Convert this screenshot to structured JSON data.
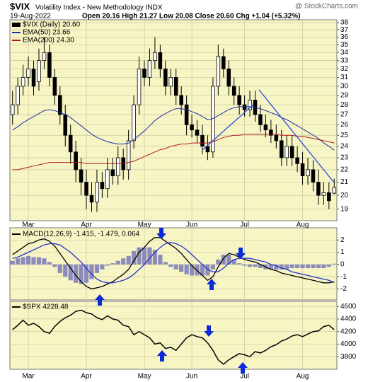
{
  "header": {
    "symbol": "$VIX",
    "subtitle": "Volatility Index - New Methodology INDX",
    "watermark": "@ StockCharts.com",
    "date": "19-Aug-2022",
    "quote": "Open 20.16 High 21.27 Low 20.08 Close 20.60 Chg +1.04 (+5.32%)"
  },
  "chart_data": [
    {
      "type": "candlestick",
      "log_scale": true,
      "grid": true,
      "categories": [
        null,
        null,
        null,
        "Mar",
        null,
        null,
        null,
        null,
        null,
        null,
        null,
        null,
        null,
        null,
        "Apr",
        null,
        null,
        null,
        null,
        null,
        null,
        null,
        null,
        null,
        null,
        "May",
        null,
        null,
        null,
        null,
        null,
        null,
        null,
        null,
        "Jun",
        null,
        null,
        null,
        null,
        null,
        null,
        null,
        null,
        null,
        "Jul",
        null,
        null,
        null,
        null,
        null,
        null,
        null,
        null,
        null,
        null,
        "Aug",
        null,
        null,
        null,
        null,
        null,
        null
      ],
      "ylim": [
        18.2,
        38.4
      ],
      "yticks": [
        19,
        20,
        21,
        22,
        23,
        24,
        25,
        26,
        27,
        28,
        29,
        30,
        31,
        32,
        33,
        34,
        35,
        36,
        37,
        38
      ],
      "series": [
        {
          "name": "$VIX (Daily) 20.60",
          "kind": "candle",
          "color": "#000000",
          "open": [
            27,
            28,
            30,
            31,
            32,
            30.5,
            33,
            34,
            31,
            29,
            27,
            25,
            23.5,
            22,
            21,
            20,
            19.5,
            21,
            20.5,
            22,
            21.5,
            23,
            22,
            24.5,
            28,
            32,
            31,
            33,
            34,
            32,
            30,
            31,
            29,
            28,
            26,
            25.5,
            25,
            24,
            23.5,
            30,
            33.5,
            32,
            30,
            29,
            28,
            27.5,
            28.5,
            27,
            26,
            25.5,
            25,
            24.5,
            23,
            24,
            23,
            22.5,
            21.5,
            22,
            21,
            20,
            20.2,
            20.16
          ],
          "high": [
            29.5,
            31,
            32.5,
            33.5,
            33,
            34.5,
            36,
            35,
            32,
            30,
            28,
            26,
            24.5,
            23,
            22,
            21,
            22,
            21.8,
            23,
            23,
            24,
            23.8,
            25.5,
            29,
            33.5,
            33,
            34.5,
            36,
            35,
            33,
            32,
            32,
            30,
            29,
            27,
            26.5,
            26,
            25,
            31,
            35,
            34.5,
            33,
            31,
            30,
            29,
            29.5,
            29.5,
            28,
            27,
            26.5,
            26,
            25.5,
            25,
            25,
            24,
            23.5,
            23,
            22.8,
            22,
            21,
            21,
            21.27
          ],
          "low": [
            26,
            27,
            29,
            30,
            29,
            29.5,
            32,
            30,
            28,
            26,
            24,
            22.5,
            21,
            20,
            19,
            18.8,
            18.8,
            19.8,
            19.8,
            20.8,
            20.8,
            21.2,
            21.2,
            23.8,
            27,
            30,
            30,
            32,
            31,
            29,
            29,
            28,
            27,
            25,
            24.8,
            24.3,
            23.3,
            22.8,
            23,
            29,
            31,
            29,
            28,
            27,
            26.8,
            26.8,
            26.3,
            25.3,
            24.8,
            24.3,
            23.8,
            22.3,
            22.3,
            22.3,
            21.8,
            20.8,
            20.8,
            20.3,
            19.3,
            19.3,
            19,
            20.08
          ],
          "close": [
            28,
            30,
            31,
            32,
            30,
            33,
            34,
            31,
            29,
            27,
            25,
            23.5,
            22,
            21,
            20,
            19.5,
            21,
            20.5,
            22,
            21.5,
            23,
            22,
            24.5,
            28,
            32,
            31,
            33,
            34,
            32,
            30,
            31,
            29,
            28,
            26,
            25.5,
            25,
            24,
            23.5,
            30,
            33.5,
            32,
            30,
            29,
            28,
            27.5,
            28.5,
            27,
            26,
            25.5,
            25,
            24.5,
            23,
            24,
            23,
            22.5,
            21.5,
            22,
            21,
            20,
            20.2,
            19.6,
            20.6
          ]
        },
        {
          "name": "EMA(50) 23.66",
          "kind": "line",
          "color": "#1c2fa8",
          "values": [
            25.5,
            25.8,
            26.2,
            26.5,
            26.8,
            27.1,
            27.4,
            27.5,
            27.4,
            27.2,
            27,
            26.7,
            26.3,
            25.9,
            25.5,
            25.1,
            24.8,
            24.6,
            24.4,
            24.3,
            24.2,
            24.2,
            24.3,
            24.6,
            25,
            25.4,
            25.9,
            26.4,
            26.8,
            27.1,
            27.4,
            27.6,
            27.6,
            27.5,
            27.3,
            27.1,
            26.8,
            26.5,
            26.6,
            26.9,
            27.2,
            27.5,
            27.7,
            27.8,
            27.8,
            27.8,
            27.7,
            27.6,
            27.4,
            27.2,
            27,
            26.7,
            26.5,
            26.2,
            25.9,
            25.6,
            25.3,
            25,
            24.7,
            24.3,
            24,
            23.66
          ]
        },
        {
          "name": "EMA(200) 24.30",
          "kind": "line",
          "color": "#b0181c",
          "values": [
            22,
            22,
            22.1,
            22.2,
            22.3,
            22.4,
            22.5,
            22.6,
            22.6,
            22.6,
            22.6,
            22.6,
            22.6,
            22.6,
            22.5,
            22.5,
            22.5,
            22.5,
            22.5,
            22.5,
            22.5,
            22.5,
            22.6,
            22.7,
            22.9,
            23.1,
            23.3,
            23.5,
            23.7,
            23.8,
            24,
            24.1,
            24.2,
            24.2,
            24.3,
            24.3,
            24.3,
            24.3,
            24.4,
            24.6,
            24.8,
            24.9,
            25,
            25,
            25.1,
            25.1,
            25.1,
            25.1,
            25.1,
            25.1,
            25.1,
            25,
            25,
            25,
            24.9,
            24.9,
            24.8,
            24.7,
            24.6,
            24.5,
            24.4,
            24.3
          ]
        }
      ]
    },
    {
      "type": "combo",
      "title": "MACD(12,26,9) -1.415, -1.479, 0.064",
      "grid": true,
      "ylim": [
        -2.9,
        3.0
      ],
      "yticks": [
        2,
        1,
        0,
        -1,
        -2
      ],
      "series": [
        {
          "kind": "bar",
          "color": "#8c8cbc",
          "values": [
            0.3,
            0.5,
            0.6,
            0.7,
            0.6,
            0.6,
            0.5,
            0.2,
            -0.2,
            -0.7,
            -1.0,
            -1.3,
            -1.5,
            -1.6,
            -1.5,
            -1.2,
            -0.7,
            -0.4,
            -0.1,
            0.1,
            0.3,
            0.5,
            0.7,
            1.1,
            1.4,
            1.4,
            1.4,
            1.2,
            0.8,
            0.2,
            -0.2,
            -0.4,
            -0.6,
            -0.8,
            -0.9,
            -0.9,
            -0.9,
            -0.9,
            -0.4,
            0.4,
            0.8,
            0.8,
            0.4,
            0.1,
            -0.1,
            -0.2,
            -0.2,
            -0.3,
            -0.4,
            -0.4,
            -0.4,
            -0.4,
            -0.4,
            -0.3,
            -0.3,
            -0.3,
            -0.3,
            -0.3,
            -0.3,
            -0.3,
            -0.2,
            0.064
          ]
        },
        {
          "kind": "line",
          "color": "#000000",
          "values": [
            0.8,
            1.1,
            1.4,
            1.7,
            1.8,
            2.0,
            2.1,
            1.9,
            1.5,
            0.9,
            0.3,
            -0.3,
            -0.9,
            -1.4,
            -1.8,
            -2.0,
            -1.9,
            -1.8,
            -1.6,
            -1.4,
            -1.1,
            -0.8,
            -0.4,
            0.3,
            1.0,
            1.4,
            1.9,
            2.2,
            2.2,
            1.9,
            1.6,
            1.3,
            0.9,
            0.4,
            -0.1,
            -0.5,
            -0.9,
            -1.3,
            -1.0,
            -0.2,
            0.5,
            0.9,
            0.8,
            0.6,
            0.4,
            0.3,
            0.2,
            0,
            -0.2,
            -0.4,
            -0.5,
            -0.7,
            -0.8,
            -0.9,
            -1.0,
            -1.1,
            -1.2,
            -1.3,
            -1.4,
            -1.5,
            -1.5,
            -1.415
          ]
        },
        {
          "kind": "line",
          "color": "#2233cc",
          "values": [
            0.5,
            0.6,
            0.8,
            1.0,
            1.2,
            1.4,
            1.6,
            1.7,
            1.7,
            1.6,
            1.3,
            1.0,
            0.6,
            0.2,
            -0.3,
            -0.8,
            -1.2,
            -1.4,
            -1.5,
            -1.5,
            -1.4,
            -1.3,
            -1.1,
            -0.8,
            -0.4,
            0,
            0.5,
            1.0,
            1.4,
            1.7,
            1.8,
            1.7,
            1.5,
            1.2,
            0.8,
            0.4,
            0,
            -0.4,
            -0.6,
            -0.6,
            -0.3,
            0.1,
            0.4,
            0.5,
            0.5,
            0.5,
            0.4,
            0.3,
            0.2,
            0,
            -0.1,
            -0.3,
            -0.4,
            -0.6,
            -0.7,
            -0.8,
            -0.9,
            -1.0,
            -1.1,
            -1.2,
            -1.3,
            -1.479
          ]
        }
      ]
    },
    {
      "type": "line",
      "title": "$SPX 4228.48",
      "grid": true,
      "color": "#000000",
      "ylim": [
        3600,
        4680
      ],
      "yticks": [
        4600,
        4400,
        4200,
        4000,
        3800
      ],
      "values": [
        4230,
        4300,
        4380,
        4300,
        4330,
        4280,
        4200,
        4170,
        4280,
        4360,
        4420,
        4460,
        4520,
        4540,
        4500,
        4480,
        4420,
        4390,
        4450,
        4400,
        4380,
        4300,
        4280,
        4150,
        4200,
        4150,
        4100,
        4000,
        4020,
        3930,
        3950,
        3900,
        4000,
        4100,
        4150,
        4120,
        4100,
        4020,
        3900,
        3750,
        3680,
        3750,
        3800,
        3850,
        3830,
        3800,
        3880,
        3860,
        3900,
        3960,
        3990,
        4050,
        4080,
        4130,
        4150,
        4120,
        4160,
        4200,
        4210,
        4280,
        4300,
        4228.48
      ]
    }
  ]
}
